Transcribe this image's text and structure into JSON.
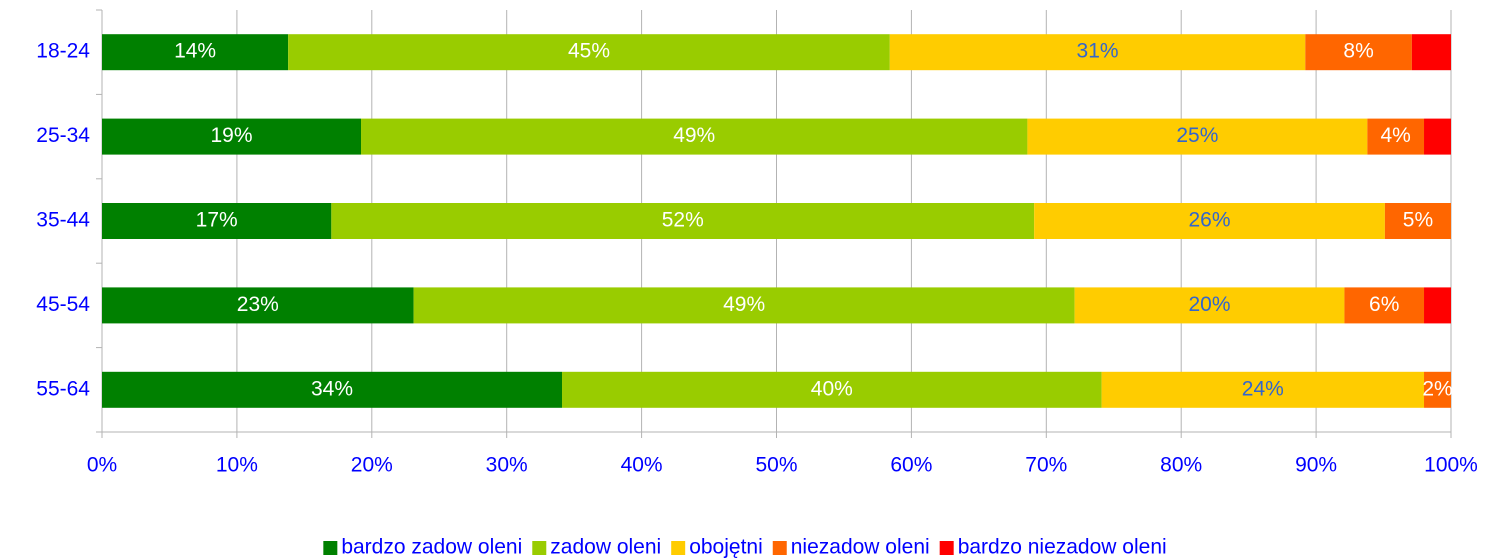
{
  "chart_data": {
    "type": "stacked_bar_horizontal",
    "categories": [
      "18-24",
      "25-34",
      "35-44",
      "45-54",
      "55-64"
    ],
    "series": [
      {
        "name": "bardzo zadow oleni",
        "color": "#008000",
        "label_color": "#ffffff",
        "values": [
          13.8,
          19.2,
          17.0,
          23.1,
          34.1
        ],
        "value_labels": [
          "14%",
          "19%",
          "17%",
          "23%",
          "34%"
        ]
      },
      {
        "name": "zadow oleni",
        "color": "#99cc00",
        "label_color": "#ffffff",
        "values": [
          44.6,
          49.4,
          52.1,
          49.0,
          40.0
        ],
        "value_labels": [
          "45%",
          "49%",
          "52%",
          "49%",
          "40%"
        ]
      },
      {
        "name": "obojętni",
        "color": "#ffcc00",
        "label_color": "#3366cc",
        "values": [
          30.8,
          25.2,
          26.0,
          20.0,
          23.9
        ],
        "value_labels": [
          "31%",
          "25%",
          "26%",
          "20%",
          "24%"
        ]
      },
      {
        "name": "niezadow oleni",
        "color": "#ff6600",
        "label_color": "#ffffff",
        "values": [
          7.9,
          4.2,
          4.9,
          5.9,
          2.0
        ],
        "value_labels": [
          "8%",
          "4%",
          "5%",
          "6%",
          "2%"
        ]
      },
      {
        "name": "bardzo niezadow oleni",
        "color": "#ff0000",
        "label_color": "#ffffff",
        "values": [
          2.9,
          2.0,
          0,
          2.0,
          0
        ],
        "value_labels": [
          null,
          null,
          null,
          null,
          null
        ]
      }
    ],
    "xlim": [
      0,
      100
    ],
    "xticks": [
      {
        "value": 0,
        "label": "0%"
      },
      {
        "value": 10,
        "label": "10%"
      },
      {
        "value": 20,
        "label": "20%"
      },
      {
        "value": 30,
        "label": "30%"
      },
      {
        "value": 40,
        "label": "40%"
      },
      {
        "value": 50,
        "label": "50%"
      },
      {
        "value": 60,
        "label": "60%"
      },
      {
        "value": 70,
        "label": "70%"
      },
      {
        "value": 80,
        "label": "80%"
      },
      {
        "value": 90,
        "label": "90%"
      },
      {
        "value": 100,
        "label": "100%"
      }
    ],
    "grid": true,
    "tick_color": "#0000ff",
    "legend": "bottom"
  }
}
